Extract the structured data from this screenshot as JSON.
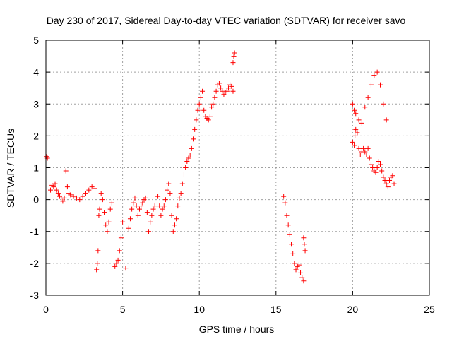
{
  "chart_data": {
    "type": "scatter",
    "title": "Day 230 of 2017, Sidereal Day-to-day VTEC variation (SDTVAR) for receiver savo",
    "xlabel": "GPS time / hours",
    "ylabel": "SDTVAR / TECUs",
    "xlim": [
      0,
      25
    ],
    "ylim": [
      -3,
      5
    ],
    "xticks": [
      "0",
      "5",
      "10",
      "15",
      "20",
      "25"
    ],
    "yticks": [
      "-3",
      "-2",
      "-1",
      "0",
      "1",
      "2",
      "3",
      "4",
      "5"
    ],
    "grid": true,
    "marker": "plus",
    "series": [
      {
        "name": "savo",
        "color": "#ff0000",
        "x": [
          0.0,
          0.05,
          0.1,
          0.3,
          0.4,
          0.5,
          0.6,
          0.7,
          0.8,
          0.9,
          1.0,
          1.1,
          1.2,
          1.3,
          1.4,
          1.5,
          1.6,
          1.8,
          2.0,
          2.2,
          2.4,
          2.6,
          2.8,
          3.0,
          3.2,
          3.3,
          3.35,
          3.4,
          3.45,
          3.5,
          3.6,
          3.7,
          3.8,
          3.9,
          4.0,
          4.1,
          4.2,
          4.3,
          4.5,
          4.6,
          4.7,
          4.8,
          4.9,
          5.0,
          5.2,
          5.4,
          5.5,
          5.6,
          5.7,
          5.8,
          5.9,
          6.0,
          6.1,
          6.2,
          6.3,
          6.4,
          6.5,
          6.6,
          6.7,
          6.8,
          6.9,
          7.0,
          7.1,
          7.3,
          7.4,
          7.5,
          7.6,
          7.7,
          7.8,
          7.9,
          8.0,
          8.1,
          8.2,
          8.3,
          8.4,
          8.5,
          8.6,
          8.7,
          8.8,
          8.9,
          9.0,
          9.1,
          9.2,
          9.3,
          9.4,
          9.5,
          9.6,
          9.7,
          9.8,
          9.9,
          10.0,
          10.1,
          10.2,
          10.3,
          10.4,
          10.5,
          10.6,
          10.7,
          10.8,
          10.9,
          11.0,
          11.1,
          11.2,
          11.3,
          11.4,
          11.5,
          11.6,
          11.7,
          11.8,
          11.9,
          12.0,
          12.1,
          12.2,
          12.2,
          12.25,
          12.3,
          15.5,
          15.6,
          15.7,
          15.8,
          15.9,
          16.0,
          16.1,
          16.2,
          16.3,
          16.4,
          16.5,
          16.6,
          16.7,
          16.8,
          16.8,
          16.85,
          16.9,
          20.0,
          20.1,
          20.15,
          20.2,
          20.3,
          20.4,
          20.5,
          20.6,
          20.7,
          20.8,
          20.9,
          21.0,
          21.1,
          21.2,
          21.3,
          21.4,
          21.5,
          21.6,
          21.7,
          21.8,
          21.9,
          22.0,
          22.1,
          22.2,
          22.3,
          22.4,
          22.5,
          22.6,
          22.7,
          20.0,
          20.1,
          20.2,
          20.4,
          20.6,
          20.8,
          21.0,
          21.2,
          21.4,
          21.6,
          21.8,
          22.0,
          22.2
        ],
        "y": [
          1.4,
          1.35,
          1.3,
          0.3,
          0.45,
          0.4,
          0.5,
          0.3,
          0.2,
          0.1,
          0.05,
          -0.05,
          0.05,
          0.9,
          0.4,
          0.2,
          0.15,
          0.1,
          0.05,
          0.0,
          0.1,
          0.2,
          0.3,
          0.4,
          0.35,
          -2.2,
          -2.0,
          -1.6,
          -0.5,
          -0.3,
          0.2,
          0.0,
          -0.4,
          -0.8,
          -1.0,
          -0.7,
          -0.3,
          -0.1,
          -2.1,
          -2.0,
          -1.9,
          -1.6,
          -1.2,
          -0.7,
          -2.15,
          -0.9,
          -0.6,
          -0.3,
          -0.1,
          0.05,
          -0.2,
          -0.5,
          -0.3,
          -0.2,
          -0.1,
          0.0,
          0.05,
          -0.4,
          -1.0,
          -0.7,
          -0.5,
          -0.3,
          -0.2,
          0.1,
          -0.2,
          -0.5,
          -0.3,
          -0.2,
          0.0,
          0.3,
          0.5,
          0.2,
          -0.5,
          -1.0,
          -0.8,
          -0.6,
          -0.2,
          0.05,
          0.2,
          0.5,
          0.8,
          1.0,
          1.2,
          1.3,
          1.4,
          1.6,
          1.9,
          2.2,
          2.5,
          2.8,
          3.0,
          3.2,
          3.4,
          2.8,
          2.6,
          2.55,
          2.5,
          2.6,
          2.9,
          3.0,
          3.2,
          3.4,
          3.6,
          3.65,
          3.5,
          3.4,
          3.3,
          3.35,
          3.4,
          3.5,
          3.6,
          3.55,
          3.4,
          4.3,
          4.5,
          4.6,
          0.1,
          -0.1,
          -0.5,
          -0.8,
          -1.1,
          -1.4,
          -1.7,
          -2.0,
          -2.2,
          -2.1,
          -2.05,
          -2.3,
          -2.45,
          -2.55,
          -1.2,
          -1.4,
          -1.6,
          1.8,
          1.7,
          2.0,
          2.2,
          2.1,
          1.6,
          1.4,
          1.5,
          1.6,
          1.5,
          1.4,
          1.6,
          1.3,
          1.1,
          1.0,
          0.9,
          0.85,
          1.0,
          1.2,
          1.1,
          0.9,
          0.7,
          0.6,
          0.5,
          0.4,
          0.6,
          0.7,
          0.75,
          0.5,
          3.0,
          2.8,
          2.7,
          2.5,
          2.4,
          2.9,
          3.2,
          3.6,
          3.9,
          4.0,
          3.6,
          3.0,
          2.5
        ]
      }
    ]
  }
}
